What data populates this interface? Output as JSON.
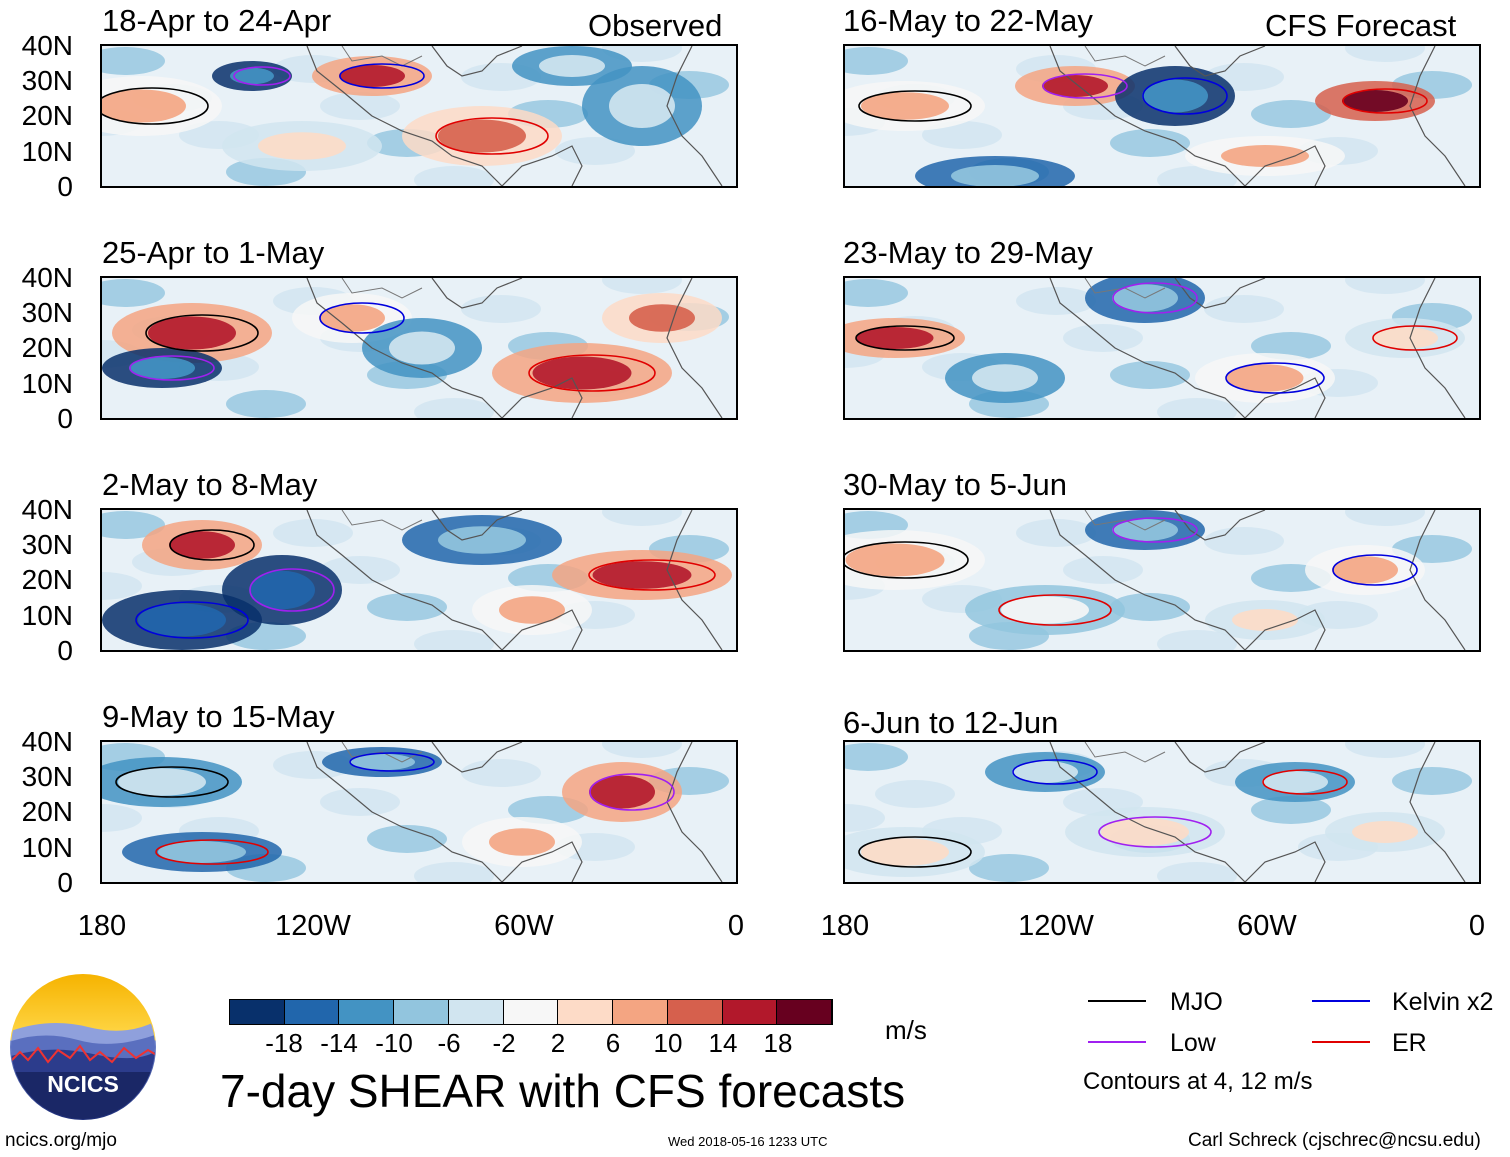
{
  "panels": {
    "observed_label": "Observed",
    "forecast_label": "CFS Forecast",
    "left": [
      {
        "title": "18-Apr to 24-Apr"
      },
      {
        "title": "25-Apr to 1-May"
      },
      {
        "title": "2-May to 8-May"
      },
      {
        "title": "9-May to 15-May"
      }
    ],
    "right": [
      {
        "title": "16-May to 22-May"
      },
      {
        "title": "23-May to 29-May"
      },
      {
        "title": "30-May to 5-Jun"
      },
      {
        "title": "6-Jun to 12-Jun"
      }
    ]
  },
  "axes": {
    "lat_labels": [
      "40N",
      "30N",
      "20N",
      "10N",
      "0"
    ],
    "lon_labels": [
      "180",
      "120W",
      "60W",
      "0"
    ]
  },
  "colorbar": {
    "tick_labels": [
      "-18",
      "-14",
      "-10",
      "-6",
      "-2",
      "2",
      "6",
      "10",
      "14",
      "18"
    ],
    "colors": [
      "#08306b",
      "#2166ac",
      "#4393c3",
      "#92c5de",
      "#d1e5f0",
      "#f7f7f7",
      "#fddbc7",
      "#f4a582",
      "#d6604d",
      "#b2182b",
      "#67001f"
    ],
    "units": "m/s"
  },
  "legend": {
    "mjo": {
      "label": "MJO",
      "color": "#000000"
    },
    "kelvin": {
      "label": "Kelvin x2",
      "color": "#0000dd"
    },
    "low": {
      "label": "Low",
      "color": "#a020f0"
    },
    "er": {
      "label": "ER",
      "color": "#e00000"
    },
    "note": "Contours at 4, 12 m/s"
  },
  "main_title": "7-day SHEAR with CFS forecasts",
  "logo": {
    "text": "NCICS"
  },
  "footer": {
    "url": "ncics.org/mjo",
    "timestamp": "Wed 2018-05-16 1233 UTC",
    "author": "Carl Schreck (cjschrec@ncsu.edu)"
  }
}
